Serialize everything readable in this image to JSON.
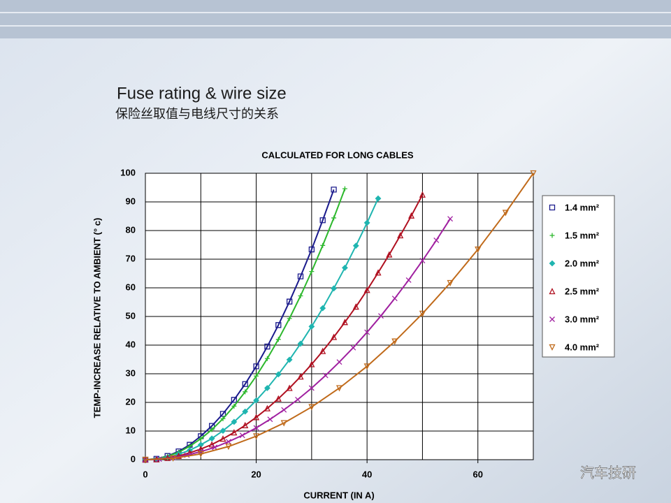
{
  "slide": {
    "title": "Fuse rating & wire size",
    "subtitle": "保险丝取值与电线尺寸的关系",
    "watermark": "汽车技研"
  },
  "chart_data": {
    "type": "line",
    "title": "CALCULATED FOR LONG CABLES",
    "x_label": "CURRENT (IN A)",
    "y_label": "TEMP-INCREASE RELATIVE TO AMBIENT (° c)",
    "xlim": [
      0,
      70
    ],
    "xticks": [
      0,
      20,
      40,
      60
    ],
    "xgrid": [
      0,
      10,
      20,
      30,
      40,
      50,
      60,
      70
    ],
    "ylim": [
      0,
      100
    ],
    "yticks": [
      0,
      10,
      20,
      30,
      40,
      50,
      60,
      70,
      80,
      90,
      100
    ],
    "grid": true,
    "legend": "right",
    "series": [
      {
        "name": "1.4 mm²",
        "color": "#1a1a8c",
        "marker": "square",
        "x": [
          0,
          2,
          4,
          6,
          8,
          10,
          12,
          14,
          16,
          18,
          20,
          22,
          24,
          26,
          28,
          30,
          32,
          34
        ],
        "values": [
          0,
          0.3,
          1.3,
          2.9,
          5.2,
          8.2,
          11.8,
          16.0,
          20.9,
          26.4,
          32.6,
          39.5,
          47.0,
          55.2,
          64.0,
          73.4,
          83.6,
          94.3
        ]
      },
      {
        "name": "1.5 mm²",
        "color": "#2db82d",
        "marker": "plus",
        "x": [
          0,
          2,
          4,
          6,
          8,
          10,
          12,
          14,
          16,
          18,
          20,
          22,
          24,
          26,
          28,
          30,
          32,
          34,
          36
        ],
        "values": [
          0,
          0.3,
          1.2,
          2.6,
          4.7,
          7.3,
          10.5,
          14.3,
          18.7,
          23.7,
          29.2,
          35.3,
          42.0,
          49.3,
          57.2,
          65.7,
          74.8,
          84.4,
          94.6
        ]
      },
      {
        "name": "2.0 mm²",
        "color": "#1fb5b0",
        "marker": "diamond",
        "x": [
          0,
          2,
          4,
          6,
          8,
          10,
          12,
          14,
          16,
          18,
          20,
          22,
          24,
          26,
          28,
          30,
          32,
          34,
          36,
          38,
          40,
          42
        ],
        "values": [
          0,
          0.2,
          0.8,
          1.9,
          3.3,
          5.2,
          7.4,
          10.1,
          13.2,
          16.8,
          20.7,
          25.0,
          29.8,
          34.9,
          40.5,
          46.5,
          52.9,
          59.8,
          67.0,
          74.7,
          82.7,
          91.2
        ]
      },
      {
        "name": "2.5 mm²",
        "color": "#b01020",
        "marker": "triangle",
        "x": [
          0,
          2,
          4,
          6,
          8,
          10,
          12,
          14,
          16,
          18,
          20,
          22,
          24,
          26,
          28,
          30,
          32,
          34,
          36,
          38,
          40,
          42,
          44,
          46,
          48,
          50
        ],
        "values": [
          0,
          0.1,
          0.6,
          1.3,
          2.4,
          3.7,
          5.3,
          7.3,
          9.5,
          12.0,
          14.8,
          17.9,
          21.3,
          25.0,
          29.0,
          33.3,
          37.9,
          42.8,
          48.0,
          53.4,
          59.2,
          65.3,
          71.6,
          78.3,
          85.2,
          92.5
        ]
      },
      {
        "name": "3.0 mm²",
        "color": "#a020a0",
        "marker": "cross",
        "x": [
          0,
          2.5,
          5,
          7.5,
          10,
          12.5,
          15,
          17.5,
          20,
          22.5,
          25,
          27.5,
          30,
          32.5,
          35,
          37.5,
          40,
          42.5,
          45,
          47.5,
          50,
          52.5,
          55
        ],
        "values": [
          0,
          0.2,
          0.7,
          1.6,
          2.8,
          4.3,
          6.3,
          8.5,
          11.1,
          14.1,
          17.4,
          21.0,
          25.0,
          29.4,
          34.1,
          39.1,
          44.5,
          50.2,
          56.3,
          62.7,
          69.5,
          76.6,
          84.1
        ]
      },
      {
        "name": "4.0 mm²",
        "color": "#c06a1a",
        "marker": "down-triangle",
        "x": [
          0,
          5,
          10,
          15,
          20,
          25,
          30,
          35,
          40,
          45,
          50,
          55,
          60,
          65,
          70
        ],
        "values": [
          0,
          0.5,
          2.0,
          4.6,
          8.2,
          12.8,
          18.4,
          25.0,
          32.6,
          41.3,
          51.0,
          61.7,
          73.4,
          86.2,
          100.0
        ]
      }
    ]
  }
}
